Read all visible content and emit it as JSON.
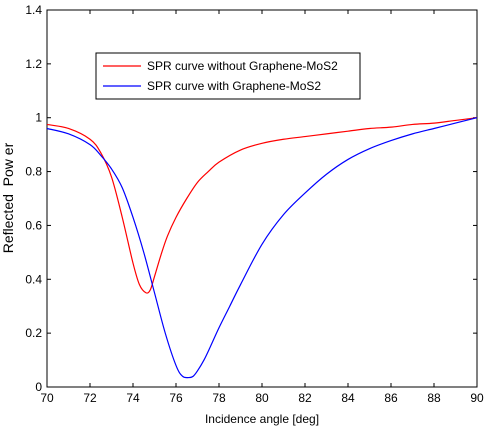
{
  "chart_data": {
    "type": "line",
    "xlabel": "Incidence angle [deg]",
    "ylabel": "Reflected  Pow er",
    "xlim": [
      70,
      90
    ],
    "ylim": [
      0,
      1.4
    ],
    "xticks": [
      "70",
      "72",
      "74",
      "76",
      "78",
      "80",
      "82",
      "84",
      "86",
      "88",
      "90"
    ],
    "yticks": [
      "0",
      "0.2",
      "0.4",
      "0.6",
      "0.8",
      "1",
      "1.2",
      "1.4"
    ],
    "grid": false,
    "legend_position": "top-left",
    "series": [
      {
        "name": "SPR curve without Graphene-MoS2",
        "color": "#ff0000",
        "x": [
          70,
          71,
          72,
          72.5,
          73,
          73.5,
          74,
          74.3,
          74.6,
          74.8,
          75,
          75.3,
          75.6,
          76,
          76.5,
          77,
          77.5,
          78,
          79,
          80,
          81,
          82,
          83,
          84,
          85,
          86,
          87,
          88,
          89,
          90
        ],
        "y": [
          0.975,
          0.96,
          0.92,
          0.87,
          0.78,
          0.63,
          0.46,
          0.38,
          0.35,
          0.36,
          0.41,
          0.49,
          0.56,
          0.63,
          0.7,
          0.76,
          0.8,
          0.835,
          0.88,
          0.905,
          0.92,
          0.93,
          0.94,
          0.95,
          0.96,
          0.965,
          0.975,
          0.98,
          0.99,
          1.0
        ]
      },
      {
        "name": "SPR curve with Graphene-MoS2",
        "color": "#0000ff",
        "x": [
          70,
          71,
          72,
          72.5,
          73,
          73.5,
          74,
          74.5,
          75,
          75.5,
          76,
          76.3,
          76.6,
          76.8,
          77,
          77.3,
          77.6,
          78,
          78.5,
          79,
          80,
          81,
          82,
          83,
          84,
          85,
          86,
          87,
          88,
          89,
          90
        ],
        "y": [
          0.96,
          0.94,
          0.9,
          0.86,
          0.81,
          0.74,
          0.63,
          0.5,
          0.35,
          0.2,
          0.08,
          0.04,
          0.035,
          0.04,
          0.06,
          0.1,
          0.15,
          0.22,
          0.3,
          0.38,
          0.53,
          0.64,
          0.72,
          0.79,
          0.845,
          0.885,
          0.915,
          0.94,
          0.96,
          0.98,
          1.0
        ]
      }
    ]
  }
}
